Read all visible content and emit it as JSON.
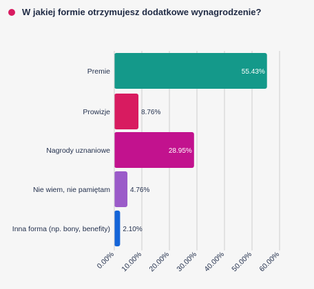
{
  "title": {
    "text": "W jakiej formie otrzymujesz dodatkowe wynagrodzenie?",
    "dot_color": "#d81b60",
    "icon": "bullet-dot-icon"
  },
  "chart_data": {
    "type": "bar",
    "orientation": "horizontal",
    "title": "W jakiej formie otrzymujesz dodatkowe wynagrodzenie?",
    "categories": [
      "Premie",
      "Prowizje",
      "Nagrody uznaniowe",
      "Nie wiem, nie pamiętam",
      "Inna forma (np. bony, benefity)"
    ],
    "values": [
      55.43,
      8.76,
      28.95,
      4.76,
      2.1
    ],
    "value_labels": [
      "55.43%",
      "8.76%",
      "28.95%",
      "4.76%",
      "2.10%"
    ],
    "colors": [
      "#14998a",
      "#d81b60",
      "#c2128e",
      "#9b5bc9",
      "#1565d8"
    ],
    "xlim": [
      0,
      60
    ],
    "xticks": [
      0,
      10,
      20,
      30,
      40,
      50,
      60
    ],
    "xtick_labels": [
      "0.00%",
      "10.00%",
      "20.00%",
      "30.00%",
      "40.00%",
      "50.00%",
      "60.00%"
    ],
    "grid": true,
    "xlabel": "",
    "ylabel": ""
  }
}
